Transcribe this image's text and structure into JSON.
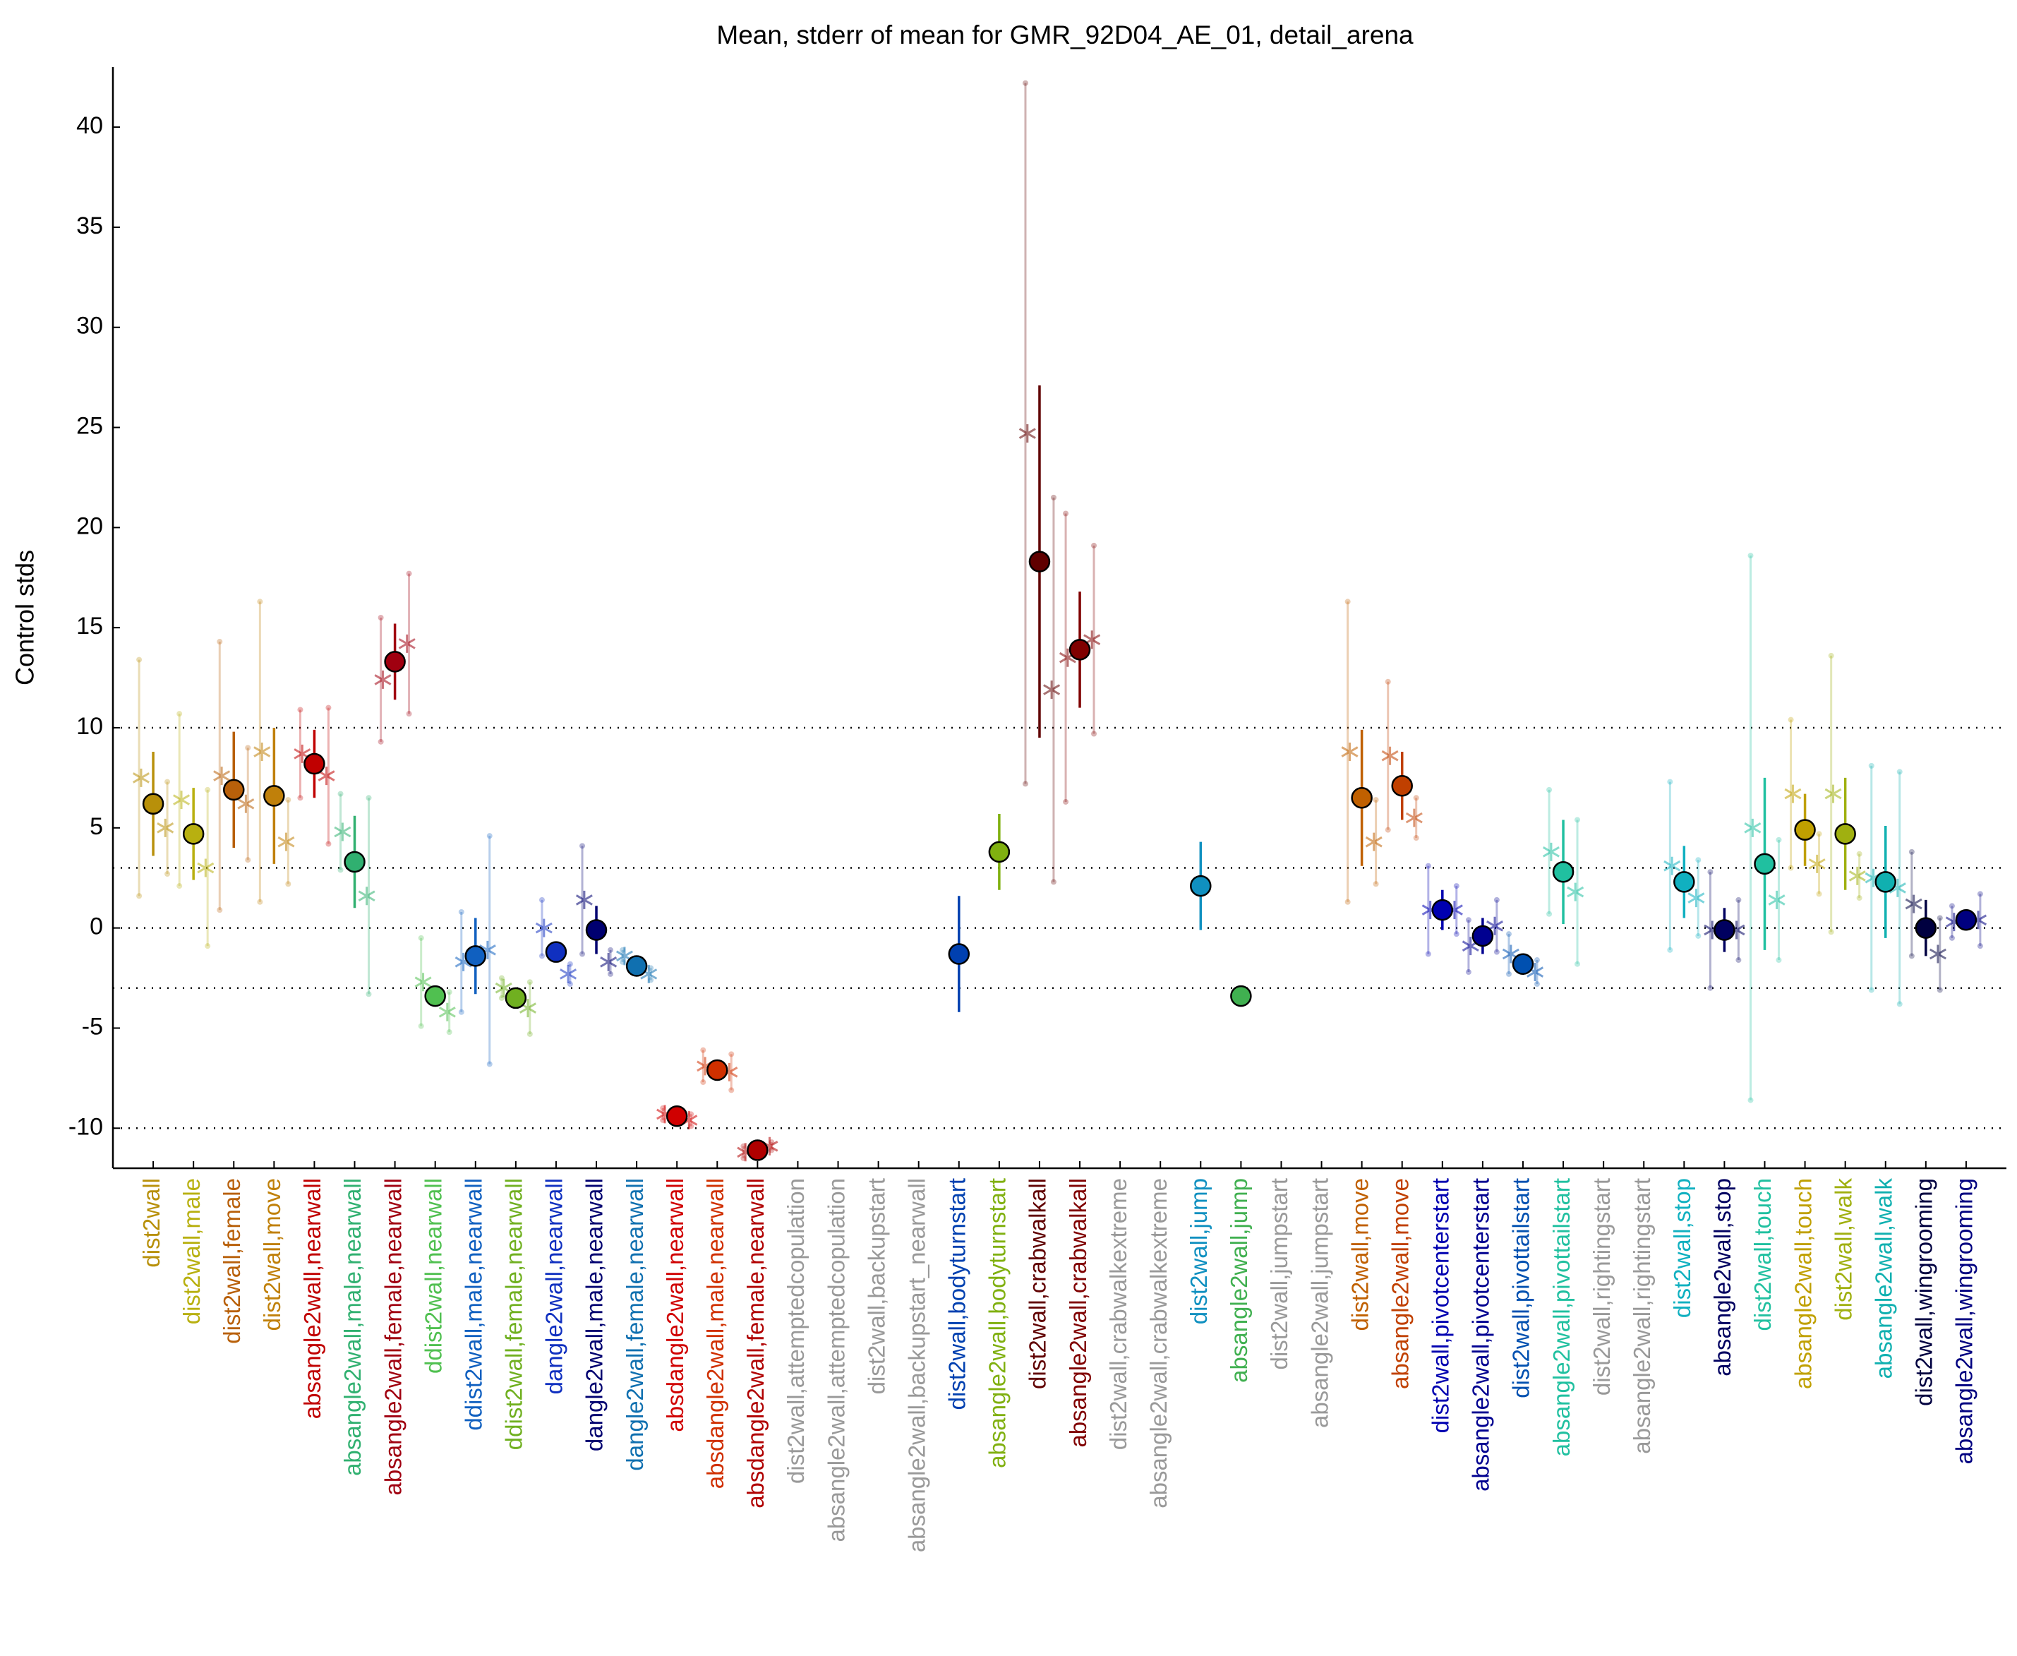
{
  "chart_data": {
    "type": "errorbar",
    "title": "Mean, stderr of mean for GMR_92D04_AE_01, detail_arena",
    "ylabel": "Control stds",
    "categories": [
      "dist2wall",
      "dist2wall,male",
      "dist2wall,female",
      "dist2wall,move",
      "absangle2wall,nearwall",
      "absangle2wall,male,nearwall",
      "absangle2wall,female,nearwall",
      "ddist2wall,nearwall",
      "ddist2wall,male,nearwall",
      "ddist2wall,female,nearwall",
      "dangle2wall,nearwall",
      "dangle2wall,male,nearwall",
      "dangle2wall,female,nearwall",
      "absdangle2wall,nearwall",
      "absdangle2wall,male,nearwall",
      "absdangle2wall,female,nearwall",
      "dist2wall,attemptedcopulation",
      "absangle2wall,attemptedcopulation",
      "dist2wall,backupstart",
      "absangle2wall,backupstart_nearwall",
      "dist2wall,bodyturnstart",
      "absangle2wall,bodyturnstart",
      "dist2wall,crabwalkall",
      "absangle2wall,crabwalkall",
      "dist2wall,crabwalkextreme",
      "absangle2wall,crabwalkextreme",
      "dist2wall,jump",
      "absangle2wall,jump",
      "dist2wall,jumpstart",
      "absangle2wall,jumpstart",
      "dist2wall,move",
      "absangle2wall,move",
      "dist2wall,pivotcenterstart",
      "absangle2wall,pivotcenterstart",
      "dist2wall,pivottailstart",
      "absangle2wall,pivottailstart",
      "dist2wall,rightingstart",
      "absangle2wall,rightingstart",
      "dist2wall,stop",
      "absangle2wall,stop",
      "dist2wall,touch",
      "absangle2wall,touch",
      "dist2wall,walk",
      "absangle2wall,walk",
      "dist2wall,wingrooming",
      "absangle2wall,wingrooming"
    ],
    "colors": [
      "#b8900a",
      "#b8b010",
      "#b8600a",
      "#c0800a",
      "#c00000",
      "#30b070",
      "#a00010",
      "#50c050",
      "#1060c0",
      "#70b020",
      "#1030c0",
      "#000070",
      "#1070b0",
      "#d00000",
      "#d03000",
      "#b00000",
      "#999999",
      "#999999",
      "#999999",
      "#999999",
      "#0040b0",
      "#80b010",
      "#600000",
      "#800000",
      "#999999",
      "#999999",
      "#1090c0",
      "#40b050",
      "#999999",
      "#999999",
      "#c06000",
      "#c04000",
      "#0000b0",
      "#000090",
      "#0050b0",
      "#20c0a0",
      "#999999",
      "#999999",
      "#10b0c0",
      "#000060",
      "#20c0a0",
      "#c0a000",
      "#a0b010",
      "#10b0b0",
      "#000040",
      "#000080"
    ],
    "values": [
      6.2,
      4.7,
      6.9,
      6.6,
      8.2,
      3.3,
      13.3,
      -3.4,
      -1.4,
      -3.5,
      -1.2,
      -0.1,
      -1.9,
      -9.4,
      -7.1,
      -11.1,
      null,
      null,
      null,
      null,
      -1.3,
      3.8,
      18.3,
      13.9,
      null,
      null,
      2.1,
      -3.4,
      null,
      null,
      6.5,
      7.1,
      0.9,
      -0.4,
      -1.8,
      2.8,
      null,
      null,
      2.3,
      -0.1,
      3.2,
      4.9,
      4.7,
      2.3,
      0.0,
      0.4
    ],
    "errors": [
      2.6,
      2.3,
      2.9,
      3.4,
      1.7,
      2.3,
      1.9,
      0.3,
      1.9,
      0.3,
      0.5,
      1.2,
      0.3,
      0.3,
      0.3,
      0.2,
      null,
      null,
      null,
      null,
      2.9,
      1.9,
      8.8,
      2.9,
      null,
      null,
      2.2,
      0.2,
      null,
      null,
      3.4,
      1.7,
      1.0,
      0.9,
      0.5,
      2.6,
      null,
      null,
      1.8,
      1.1,
      4.3,
      1.8,
      2.8,
      2.8,
      1.4,
      0.5
    ],
    "male_values": [
      7.5,
      6.4,
      7.6,
      8.8,
      8.7,
      4.8,
      12.4,
      -2.7,
      -1.7,
      -3.0,
      0.0,
      1.4,
      -1.4,
      -9.3,
      -6.9,
      -11.2,
      null,
      null,
      null,
      null,
      null,
      null,
      24.7,
      13.5,
      null,
      null,
      null,
      null,
      null,
      null,
      8.8,
      8.6,
      0.9,
      -0.9,
      -1.3,
      3.8,
      null,
      null,
      3.1,
      -0.1,
      5.0,
      6.7,
      6.7,
      2.5,
      1.2,
      0.3
    ],
    "male_errors": [
      5.9,
      4.3,
      6.7,
      7.5,
      2.2,
      1.9,
      3.1,
      2.2,
      2.5,
      0.5,
      1.4,
      2.7,
      0.3,
      0.3,
      0.8,
      0.3,
      null,
      null,
      null,
      null,
      null,
      null,
      17.5,
      7.2,
      null,
      null,
      null,
      null,
      null,
      null,
      7.5,
      3.7,
      2.2,
      1.3,
      1.0,
      3.1,
      null,
      null,
      4.2,
      2.9,
      13.6,
      3.7,
      6.9,
      5.6,
      2.6,
      0.8
    ],
    "female_values": [
      5.0,
      3.0,
      6.2,
      4.3,
      7.6,
      1.6,
      14.2,
      -4.2,
      -1.1,
      -4.0,
      -2.3,
      -1.7,
      -2.3,
      -9.6,
      -7.2,
      -10.9,
      null,
      null,
      null,
      null,
      null,
      null,
      11.9,
      14.4,
      null,
      null,
      null,
      null,
      null,
      null,
      4.3,
      5.5,
      0.9,
      0.1,
      -2.2,
      1.8,
      null,
      null,
      1.5,
      -0.1,
      1.4,
      3.2,
      2.6,
      2.0,
      -1.3,
      0.4
    ],
    "female_errors": [
      2.3,
      3.9,
      2.8,
      2.1,
      3.4,
      4.9,
      3.5,
      1.0,
      5.7,
      1.3,
      0.5,
      0.6,
      0.3,
      0.3,
      0.9,
      0.2,
      null,
      null,
      null,
      null,
      null,
      null,
      9.6,
      4.7,
      null,
      null,
      null,
      null,
      null,
      null,
      2.1,
      1.0,
      1.2,
      1.3,
      0.6,
      3.6,
      null,
      null,
      1.9,
      1.5,
      3.0,
      1.5,
      1.1,
      5.8,
      1.8,
      1.3
    ],
    "ylim": [
      -12,
      43
    ],
    "yticks": [
      -10,
      -5,
      0,
      5,
      10,
      15,
      20,
      25,
      30,
      35,
      40
    ],
    "reference_lines": [
      -10,
      -3,
      0,
      3,
      10
    ],
    "grid": false
  }
}
